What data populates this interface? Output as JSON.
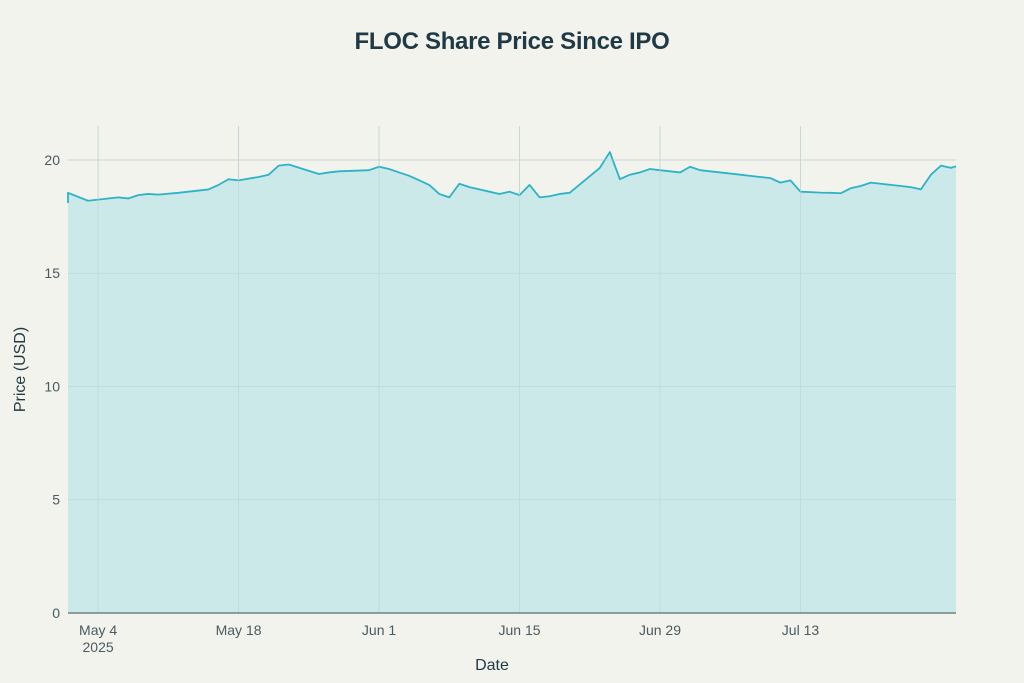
{
  "chart_data": {
    "type": "area",
    "title": "FLOC Share Price Since IPO",
    "xlabel": "Date",
    "ylabel": "Price (USD)",
    "ylim": [
      0,
      21.5
    ],
    "yticks": [
      0,
      5,
      10,
      15,
      20
    ],
    "ytick_labels": [
      "0",
      "5",
      "10",
      "15",
      "20"
    ],
    "xrange_day": [
      0,
      88.5
    ],
    "xticks": [
      {
        "day": 3,
        "label": "May 4",
        "sublabel": "2025"
      },
      {
        "day": 17,
        "label": "May 18",
        "sublabel": ""
      },
      {
        "day": 31,
        "label": "Jun 1",
        "sublabel": ""
      },
      {
        "day": 45,
        "label": "Jun 15",
        "sublabel": ""
      },
      {
        "day": 59,
        "label": "Jun 29",
        "sublabel": ""
      },
      {
        "day": 73,
        "label": "Jul 13",
        "sublabel": ""
      }
    ],
    "colors": {
      "line": "#2cb3c6",
      "fill": "#c9e8e8",
      "grid": "#d9dcd6",
      "axis": "#5c6c72"
    },
    "series": [
      {
        "name": "FLOC",
        "day": [
          -2,
          0,
          2,
          4,
          5,
          6,
          7,
          8,
          9,
          11,
          14,
          15,
          16,
          17,
          19,
          20,
          21,
          22,
          25,
          26,
          27,
          30,
          31,
          32,
          33,
          34,
          35,
          36,
          37,
          38,
          39,
          40,
          41,
          42,
          43,
          44,
          45,
          46,
          47,
          48,
          49,
          50,
          53,
          54,
          55,
          56,
          57,
          58,
          59,
          60,
          61,
          62,
          63,
          64,
          65,
          66,
          67,
          68,
          69,
          70,
          71,
          72,
          73,
          74,
          75,
          76,
          77,
          78,
          79,
          80,
          81,
          82,
          83,
          84,
          85,
          86,
          87,
          88,
          88.5
        ],
        "values": [
          18.1,
          18.55,
          18.2,
          18.3,
          18.35,
          18.3,
          18.45,
          18.5,
          18.47,
          18.55,
          18.7,
          18.9,
          19.15,
          19.1,
          19.25,
          19.35,
          19.75,
          19.8,
          19.38,
          19.45,
          19.5,
          19.55,
          19.7,
          19.6,
          19.45,
          19.3,
          19.1,
          18.9,
          18.5,
          18.35,
          18.95,
          18.8,
          18.7,
          18.6,
          18.5,
          18.6,
          18.45,
          18.9,
          18.35,
          18.4,
          18.5,
          18.55,
          19.65,
          20.35,
          19.15,
          19.35,
          19.45,
          19.6,
          19.55,
          19.5,
          19.45,
          19.7,
          19.55,
          19.5,
          19.45,
          19.4,
          19.35,
          19.3,
          19.25,
          19.2,
          19.0,
          19.1,
          18.6,
          18.58,
          18.56,
          18.55,
          18.53,
          18.75,
          18.85,
          19.0,
          18.95,
          18.9,
          18.85,
          18.8,
          18.7,
          19.35,
          19.75,
          19.65,
          19.72
        ]
      }
    ]
  }
}
